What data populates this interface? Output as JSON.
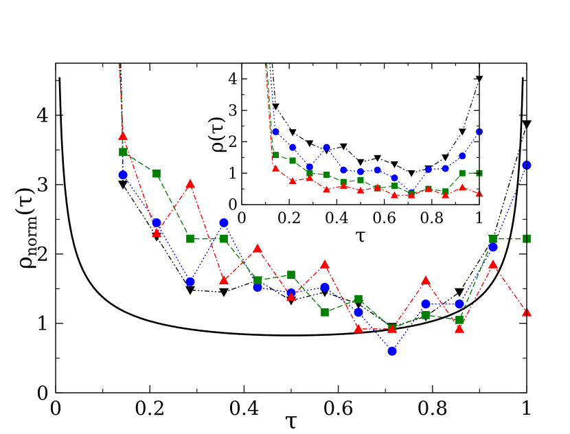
{
  "chart_data": [
    {
      "type": "line",
      "role": "main",
      "xlabel": "τ",
      "ylabel": "ρ",
      "ylabel_sub": "norm",
      "ylabel_tail": "(τ)",
      "xlim": [
        0,
        1
      ],
      "ylim": [
        0,
        4.75
      ],
      "xticks": [
        0,
        0.2,
        0.4,
        0.6,
        0.8,
        1
      ],
      "xtick_labels": [
        "0",
        "0.2",
        "0.4",
        "0.6",
        "0.8",
        "1"
      ],
      "yticks": [
        0,
        1,
        2,
        3,
        4
      ],
      "ytick_labels": [
        "0",
        "1",
        "2",
        "3",
        "4"
      ],
      "series": [
        {
          "name": "black-triangle-down",
          "color": "#000000",
          "marker": "triangle-down",
          "dash": "7,3,2,3,2,3",
          "x": [
            0.1429,
            0.2143,
            0.2857,
            0.3571,
            0.4286,
            0.5,
            0.5714,
            0.6429,
            0.7143,
            0.7857,
            0.8571,
            0.9286,
            1.0
          ],
          "y": [
            3.0,
            2.25,
            1.48,
            1.45,
            1.62,
            1.33,
            1.45,
            1.28,
            0.95,
            1.1,
            1.45,
            2.22,
            3.87
          ],
          "lead": [
            [
              0.138,
              4.75
            ],
            [
              0.142,
              3.8
            ]
          ]
        },
        {
          "name": "blue-circle",
          "color": "#0000ff",
          "marker": "circle",
          "dash": "2,3",
          "x": [
            0.1429,
            0.2143,
            0.2857,
            0.3571,
            0.4286,
            0.5,
            0.5714,
            0.6429,
            0.7143,
            0.7857,
            0.8571,
            0.9286,
            1.0
          ],
          "y": [
            3.14,
            2.45,
            1.6,
            2.45,
            1.52,
            1.44,
            1.52,
            1.16,
            0.6,
            1.28,
            1.28,
            2.1,
            3.28
          ],
          "lead": [
            [
              0.137,
              4.75
            ],
            [
              0.141,
              3.9
            ]
          ]
        },
        {
          "name": "green-square",
          "color": "#008000",
          "marker": "square",
          "dash": "8,4",
          "x": [
            0.1429,
            0.2143,
            0.2857,
            0.3571,
            0.4286,
            0.5,
            0.5714,
            0.6429,
            0.7143,
            0.7857,
            0.8571,
            0.9286,
            1.0
          ],
          "y": [
            3.47,
            3.16,
            2.22,
            2.22,
            1.62,
            1.7,
            1.16,
            1.35,
            0.93,
            1.12,
            1.05,
            2.22,
            2.22
          ],
          "lead": [
            [
              0.136,
              4.75
            ],
            [
              0.14,
              4.1
            ]
          ]
        },
        {
          "name": "red-triangle-up",
          "color": "#ff0000",
          "marker": "triangle-up",
          "dash": "7,3,2,3",
          "x": [
            0.1429,
            0.2143,
            0.2857,
            0.3571,
            0.4286,
            0.5,
            0.5714,
            0.6429,
            0.7143,
            0.7857,
            0.8571,
            0.9286,
            1.0
          ],
          "y": [
            3.7,
            2.3,
            3.01,
            1.62,
            2.08,
            1.38,
            1.85,
            0.92,
            0.92,
            1.62,
            0.92,
            1.85,
            1.16
          ],
          "lead": [
            [
              0.135,
              4.75
            ],
            [
              0.14,
              4.2
            ]
          ]
        }
      ],
      "curve": {
        "name": "theory",
        "color": "#000000",
        "scale": 0.4134,
        "x_range": [
          0.0,
          1.0
        ]
      }
    },
    {
      "type": "line",
      "role": "inset",
      "xlabel": "τ",
      "ylabel": "ρ(τ)",
      "xlim": [
        0,
        1
      ],
      "ylim": [
        0,
        4.5
      ],
      "xticks": [
        0,
        0.2,
        0.4,
        0.6,
        0.8,
        1
      ],
      "xtick_labels": [
        "0",
        "0.2",
        "0.4",
        "0.6",
        "0.8",
        "1"
      ],
      "yticks": [
        0,
        1,
        2,
        3,
        4
      ],
      "ytick_labels": [
        "0",
        "1",
        "2",
        "3",
        "4"
      ],
      "series": [
        {
          "name": "black-triangle-down",
          "color": "#000000",
          "marker": "triangle-down",
          "dash": "7,3,2,3,2,3",
          "x": [
            0.1429,
            0.2143,
            0.2857,
            0.3571,
            0.4286,
            0.5,
            0.5714,
            0.6429,
            0.7143,
            0.7857,
            0.8571,
            0.9286,
            1.0
          ],
          "y": [
            3.12,
            2.3,
            1.95,
            1.72,
            1.85,
            1.35,
            1.48,
            1.28,
            1.0,
            1.15,
            1.5,
            2.32,
            4.0
          ],
          "lead": [
            [
              0.128,
              4.5
            ],
            [
              0.14,
              3.4
            ]
          ]
        },
        {
          "name": "blue-circle",
          "color": "#0000ff",
          "marker": "circle",
          "dash": "2,3",
          "x": [
            0.1429,
            0.2143,
            0.2857,
            0.3571,
            0.4286,
            0.5,
            0.5714,
            0.6429,
            0.7143,
            0.7857,
            0.8571,
            0.9286,
            1.0
          ],
          "y": [
            2.32,
            1.82,
            1.2,
            1.82,
            1.1,
            1.05,
            1.1,
            0.85,
            0.38,
            1.12,
            1.15,
            1.55,
            2.32
          ],
          "lead": [
            [
              0.118,
              4.5
            ],
            [
              0.138,
              2.6
            ]
          ]
        },
        {
          "name": "green-square",
          "color": "#008000",
          "marker": "square",
          "dash": "8,4",
          "x": [
            0.1429,
            0.2143,
            0.2857,
            0.3571,
            0.4286,
            0.5,
            0.5714,
            0.6429,
            0.7143,
            0.7857,
            0.8571,
            0.9286,
            1.0
          ],
          "y": [
            1.58,
            1.4,
            1.0,
            0.95,
            0.72,
            0.78,
            0.52,
            0.6,
            0.35,
            0.5,
            0.42,
            1.0,
            1.0
          ],
          "lead": [
            [
              0.105,
              4.5
            ],
            [
              0.13,
              1.8
            ]
          ]
        },
        {
          "name": "red-triangle-up",
          "color": "#ff0000",
          "marker": "triangle-up",
          "dash": "7,3,2,3",
          "x": [
            0.1429,
            0.2143,
            0.2857,
            0.3571,
            0.4286,
            0.5,
            0.5714,
            0.6429,
            0.7143,
            0.7857,
            0.8571,
            0.9286,
            1.0
          ],
          "y": [
            1.15,
            0.75,
            0.85,
            0.48,
            0.6,
            0.45,
            0.55,
            0.3,
            0.3,
            0.5,
            0.3,
            0.55,
            0.35
          ],
          "lead": [
            [
              0.1,
              4.5
            ],
            [
              0.13,
              1.3
            ]
          ]
        }
      ]
    }
  ]
}
